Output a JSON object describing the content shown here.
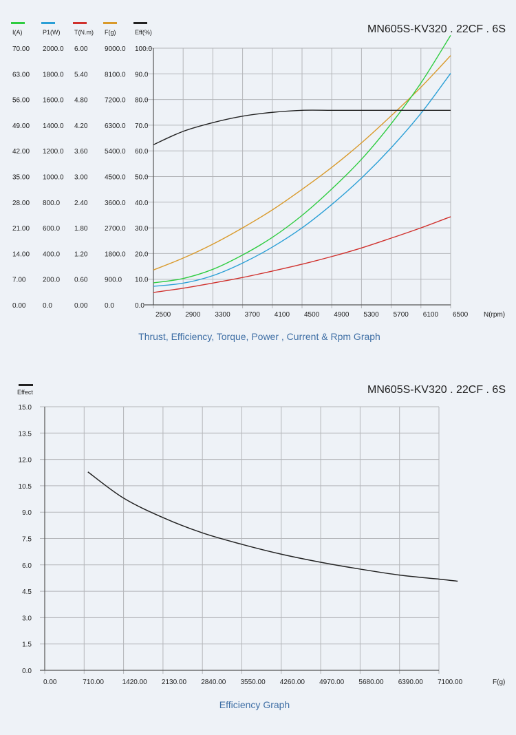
{
  "chart_data": [
    {
      "type": "line",
      "title": "MN605S-KV320 . 22CF . 6S",
      "caption": "Thrust, Efficiency, Torque, Power , Current & Rpm Graph",
      "xlabel": "N(rpm)",
      "x_ticks": [
        "2500",
        "2900",
        "3300",
        "3700",
        "4100",
        "4500",
        "4900",
        "5300",
        "5700",
        "6100",
        "6500"
      ],
      "xlim": [
        2500,
        6500
      ],
      "grid": true,
      "legend_placement": "top-left",
      "y_axes": [
        {
          "name": "I(A)",
          "color": "#2ecc40",
          "ylim": [
            0,
            70
          ],
          "ticks": [
            "0.00",
            "7.00",
            "14.00",
            "21.00",
            "28.00",
            "35.00",
            "42.00",
            "49.00",
            "56.00",
            "63.00",
            "70.00"
          ]
        },
        {
          "name": "P1(W)",
          "color": "#2a9fd6",
          "ylim": [
            0,
            2000
          ],
          "ticks": [
            "0.0",
            "200.0",
            "400.0",
            "600.0",
            "800.0",
            "1000.0",
            "1200.0",
            "1400.0",
            "1600.0",
            "1800.0",
            "2000.0"
          ]
        },
        {
          "name": "T(N.m)",
          "color": "#d0312d",
          "ylim": [
            0,
            6
          ],
          "ticks": [
            "0.00",
            "0.60",
            "1.20",
            "1.80",
            "2.40",
            "3.00",
            "3.60",
            "4.20",
            "4.80",
            "5.40",
            "6.00"
          ]
        },
        {
          "name": "F(g)",
          "color": "#d99a2b",
          "ylim": [
            0,
            9000
          ],
          "ticks": [
            "0.0",
            "900.0",
            "1800.0",
            "2700.0",
            "3600.0",
            "4500.0",
            "5400.0",
            "6300.0",
            "7200.0",
            "8100.0",
            "9000.0"
          ]
        },
        {
          "name": "Eff(%)",
          "color": "#222222",
          "ylim": [
            0,
            100
          ],
          "ticks": [
            "0.0",
            "10.0",
            "20.0",
            "30.0",
            "40.0",
            "50.0",
            "60.0",
            "70.0",
            "80.0",
            "90.0",
            "100.0"
          ]
        }
      ],
      "x": [
        2500,
        2900,
        3300,
        3700,
        4100,
        4500,
        4900,
        5300,
        5700,
        6100,
        6500
      ],
      "series": [
        {
          "name": "F(g)",
          "axis": 3,
          "values": [
            1224,
            1640,
            2130,
            2700,
            3330,
            4050,
            4820,
            5680,
            6630,
            7630,
            8740
          ]
        },
        {
          "name": "P1(W)",
          "axis": 1,
          "values": [
            145,
            169,
            228,
            326,
            450,
            600,
            782,
            988,
            1224,
            1492,
            1804
          ]
        },
        {
          "name": "I(A)",
          "axis": 0,
          "values": [
            6.0,
            7.2,
            9.7,
            13.6,
            18.4,
            24.4,
            31.6,
            39.7,
            49.4,
            60.5,
            73.5
          ]
        },
        {
          "name": "T(N.m)",
          "axis": 2,
          "values": [
            0.29,
            0.39,
            0.51,
            0.64,
            0.79,
            0.95,
            1.13,
            1.33,
            1.56,
            1.8,
            2.06
          ]
        },
        {
          "name": "Eff(%)",
          "axis": 4,
          "values": [
            62.4,
            67.6,
            71.0,
            73.5,
            75.0,
            75.8,
            75.8,
            75.8,
            75.8,
            75.8,
            75.8
          ]
        }
      ]
    },
    {
      "type": "line",
      "title": "MN605S-KV320 . 22CF . 6S",
      "caption": "Efficiency Graph",
      "legend": [
        "Effect"
      ],
      "legend_placement": "top-left",
      "xlabel": "F(g)",
      "x_ticks": [
        "0.00",
        "710.00",
        "1420.00",
        "2130.00",
        "2840.00",
        "3550.00",
        "4260.00",
        "4970.00",
        "5680.00",
        "6390.00",
        "7100.00"
      ],
      "y_ticks": [
        "0.0",
        "1.5",
        "3.0",
        "4.5",
        "6.0",
        "7.5",
        "9.0",
        "10.5",
        "12.0",
        "13.5",
        "15.0"
      ],
      "xlim": [
        0,
        7100
      ],
      "ylim": [
        0,
        15
      ],
      "grid": true,
      "series": [
        {
          "name": "Effect",
          "color": "#222222",
          "x": [
            778,
            1420,
            2130,
            2840,
            3550,
            4260,
            4970,
            5680,
            6390,
            7100,
            7438
          ],
          "values": [
            11.29,
            9.8,
            8.69,
            7.82,
            7.17,
            6.61,
            6.15,
            5.76,
            5.42,
            5.19,
            5.07
          ]
        }
      ]
    }
  ]
}
